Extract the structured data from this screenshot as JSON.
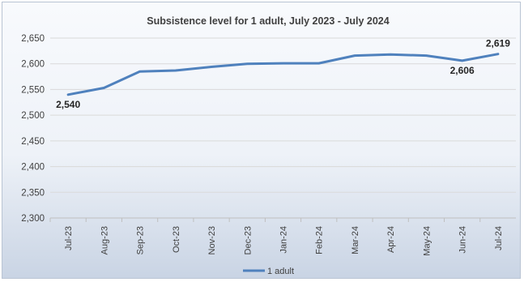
{
  "chart_data": {
    "type": "line",
    "title": "Subsistence level for 1 adult, July 2023 - July 2024",
    "xlabel": "",
    "ylabel": "",
    "ylim": [
      2300,
      2650
    ],
    "yticks": [
      "2,300",
      "2,350",
      "2,400",
      "2,450",
      "2,500",
      "2,550",
      "2,600",
      "2,650"
    ],
    "categories": [
      "Jul-23",
      "Aug-23",
      "Sep-23",
      "Oct-23",
      "Nov-23",
      "Dec-23",
      "Jan-24",
      "Feb-24",
      "Mar-24",
      "Apr-24",
      "May-24",
      "Jun-24",
      "Jul-24"
    ],
    "series": [
      {
        "name": "1 adult",
        "color": "#4f81bd",
        "values": [
          2540,
          2553,
          2585,
          2587,
          2594,
          2600,
          2601,
          2601,
          2616,
          2618,
          2616,
          2606,
          2619
        ]
      }
    ],
    "data_labels": [
      {
        "index": 0,
        "text": "2,540",
        "placement": "below"
      },
      {
        "index": 11,
        "text": "2,606",
        "placement": "below"
      },
      {
        "index": 12,
        "text": "2,619",
        "placement": "above"
      }
    ],
    "grid": true,
    "legend": "bottom"
  }
}
